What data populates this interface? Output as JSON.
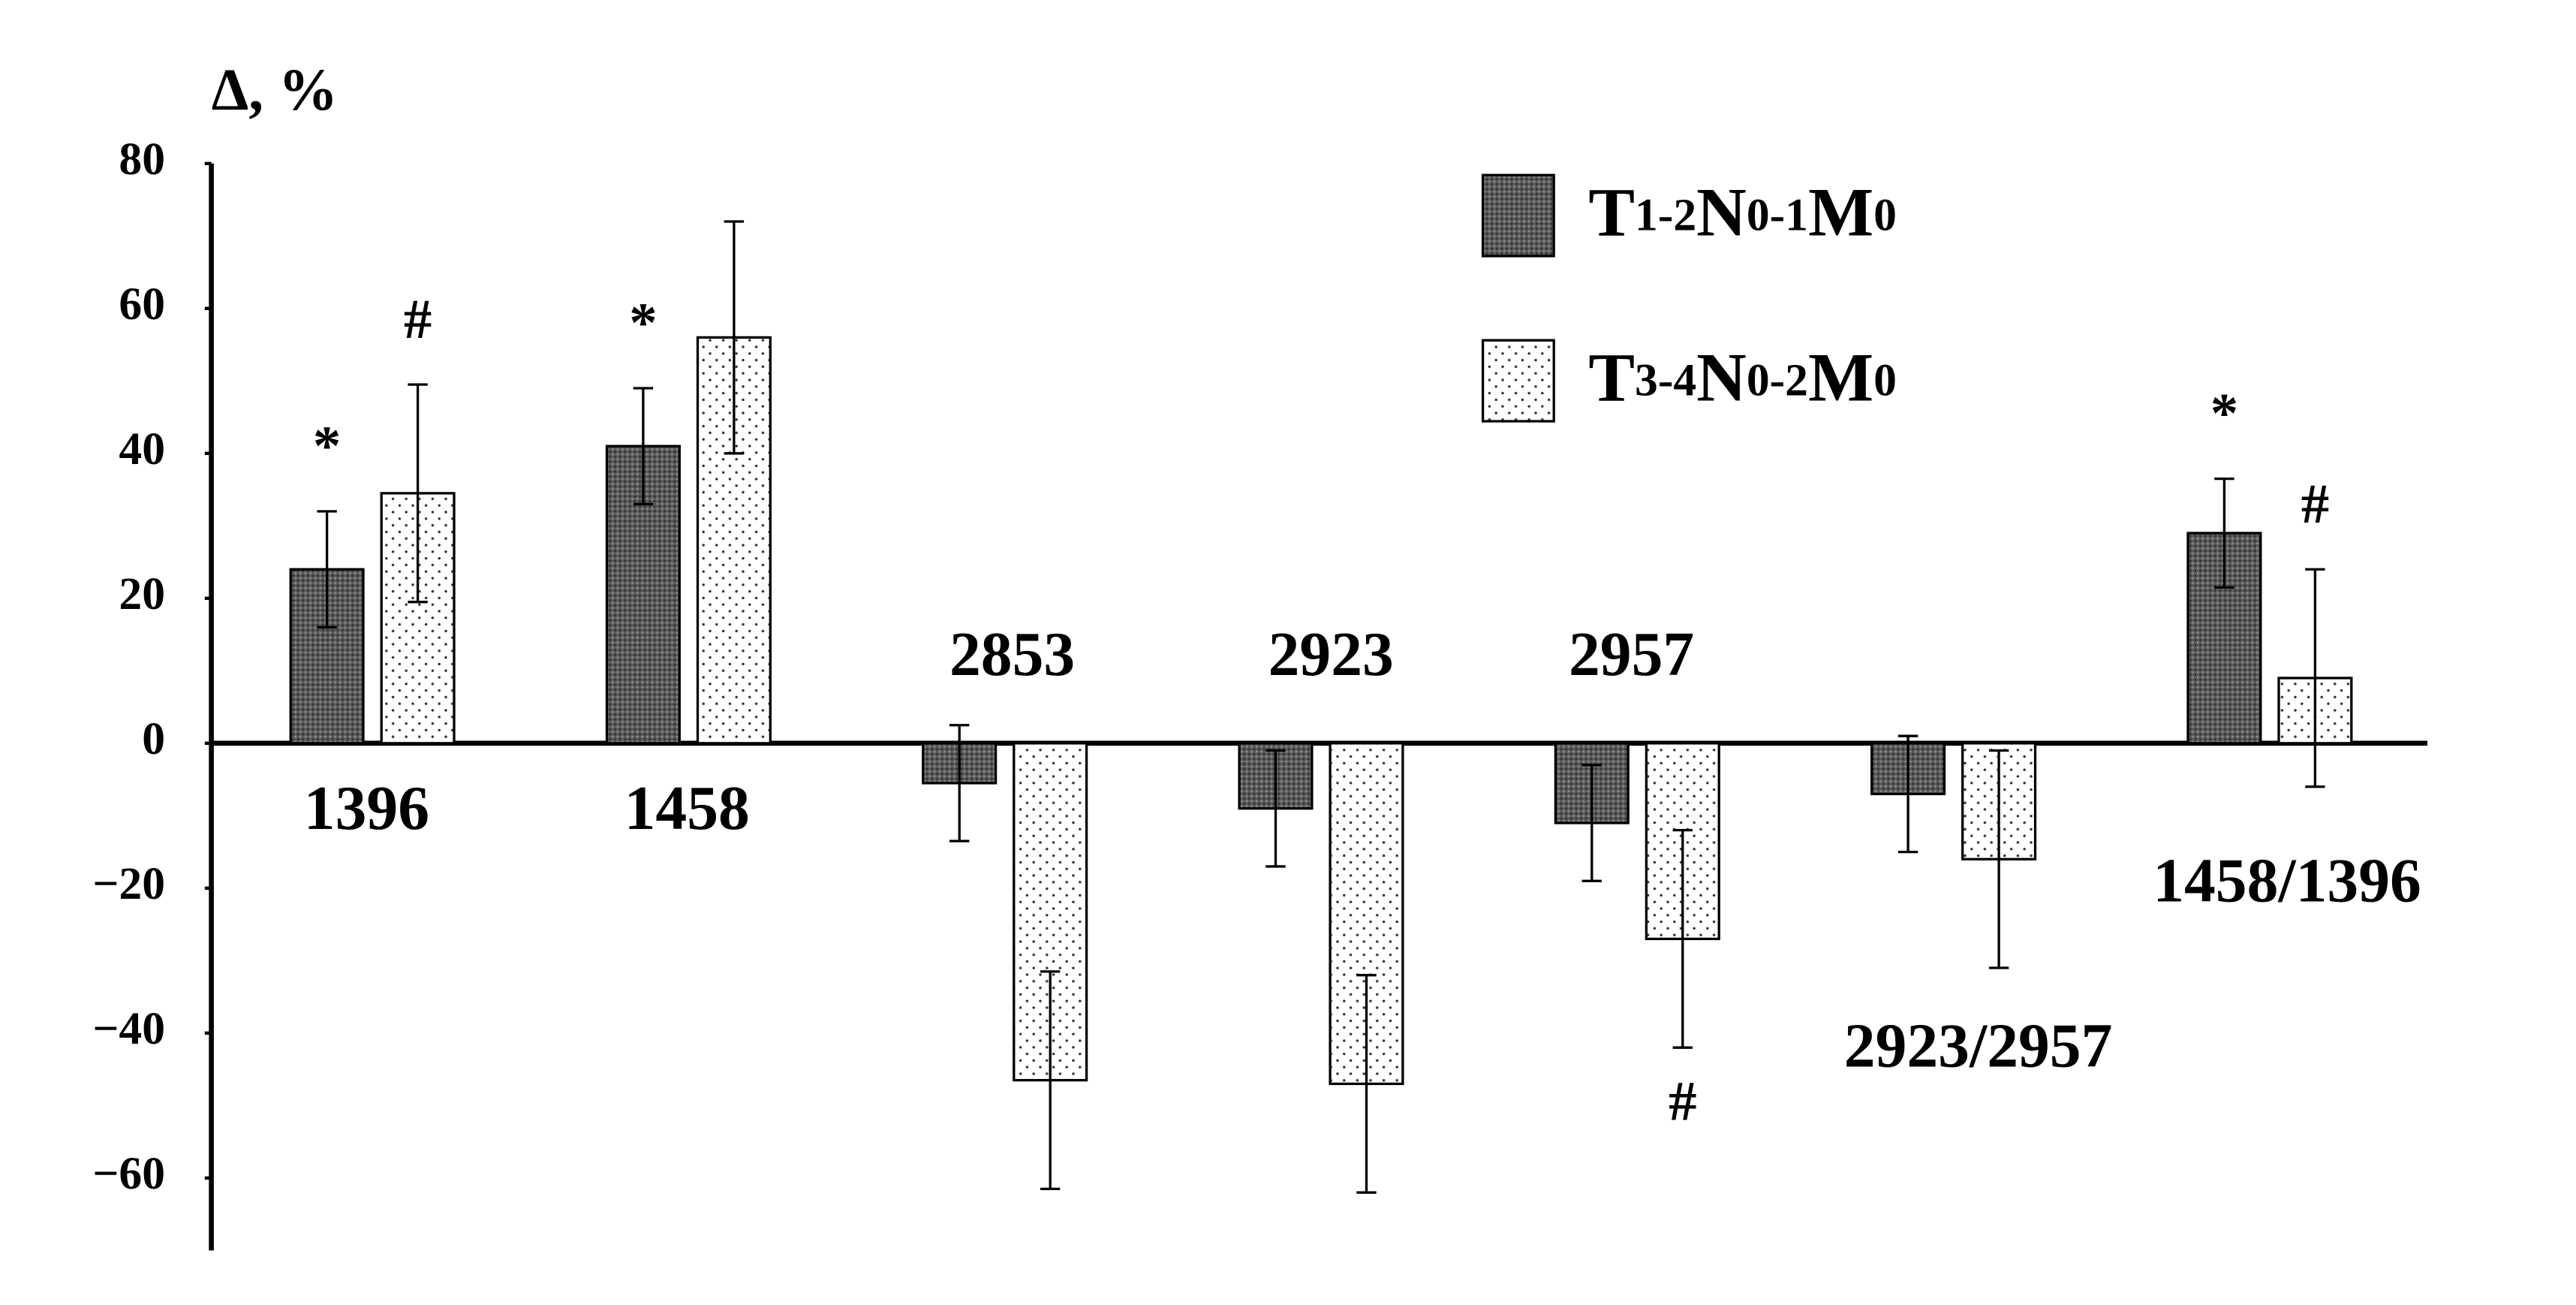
{
  "chart_data": {
    "type": "bar",
    "y_label": "Δ, %",
    "categories": [
      "1396",
      "1458",
      "2853",
      "2923",
      "2957",
      "2923/2957",
      "1458/1396"
    ],
    "series": [
      {
        "name": "T1-2N0-1M0",
        "color": "#5a5a5a",
        "pattern": "crosshatch",
        "values": [
          24,
          41,
          -5.5,
          -9,
          -11,
          -7,
          29
        ],
        "errors": [
          8,
          8,
          8,
          8,
          8,
          8,
          7.5
        ],
        "markers": [
          "*",
          "*",
          null,
          null,
          null,
          null,
          "*"
        ]
      },
      {
        "name": "T3-4N0-2M0",
        "color": "#ffffff",
        "pattern": "dots",
        "values": [
          34.5,
          56,
          -46.5,
          -47,
          -27,
          -16,
          9
        ],
        "errors": [
          15,
          16,
          15,
          15,
          15,
          15,
          15
        ],
        "markers": [
          "#",
          null,
          null,
          null,
          "#",
          null,
          "#"
        ]
      }
    ],
    "ylim": [
      -70,
      80
    ],
    "yticks": [
      80,
      60,
      40,
      20,
      0,
      {
        "value": -20,
        "label": "−20"
      },
      {
        "value": -40,
        "label": "−40"
      },
      {
        "value": -60,
        "label": "−60"
      }
    ],
    "legend": "top-right"
  }
}
